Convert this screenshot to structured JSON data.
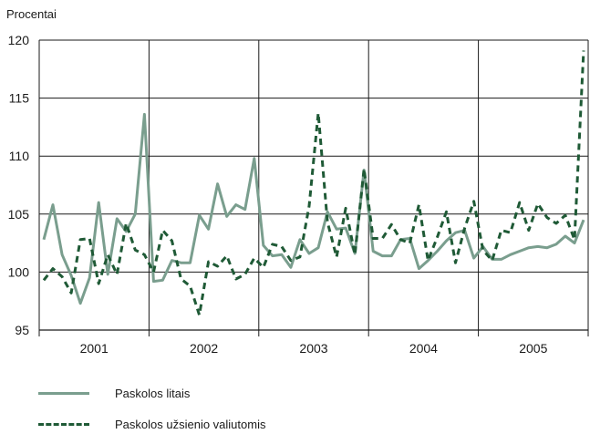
{
  "chart_data": {
    "type": "line",
    "ylabel": "Procentai",
    "ylim": [
      95,
      120
    ],
    "yticks": [
      95,
      100,
      105,
      110,
      115,
      120
    ],
    "grid": true,
    "x_year_labels": [
      "2001",
      "2002",
      "2003",
      "2004",
      "2005"
    ],
    "series": [
      {
        "name": "Paskolos litais",
        "color": "#7a9e8e",
        "style": "solid",
        "values": [
          102.8,
          105.8,
          101.5,
          99.7,
          97.3,
          99.5,
          106.0,
          99.8,
          104.6,
          103.5,
          105.0,
          113.6,
          99.2,
          99.3,
          101.0,
          100.8,
          100.8,
          104.9,
          103.7,
          107.6,
          104.8,
          105.8,
          105.4,
          109.8,
          102.3,
          101.4,
          101.5,
          100.4,
          102.8,
          101.6,
          102.1,
          105.2,
          103.7,
          103.8,
          101.6,
          108.8,
          101.8,
          101.4,
          101.4,
          102.8,
          102.9,
          100.3,
          101.0,
          101.8,
          102.7,
          103.4,
          103.6,
          101.2,
          102.2,
          101.1,
          101.1,
          101.5,
          101.8,
          102.1,
          102.2,
          102.1,
          102.4,
          103.1,
          102.5,
          104.5
        ]
      },
      {
        "name": "Paskolos užsienio valiutomis",
        "color": "#1f5a36",
        "style": "dashed",
        "values": [
          99.3,
          100.3,
          99.6,
          98.2,
          102.8,
          102.9,
          99.0,
          101.5,
          99.8,
          104.2,
          101.9,
          101.5,
          100.0,
          103.6,
          102.7,
          99.4,
          98.8,
          96.3,
          100.9,
          100.5,
          101.4,
          99.4,
          99.8,
          101.2,
          100.4,
          102.4,
          102.2,
          101.0,
          101.3,
          105.7,
          113.7,
          104.3,
          101.3,
          105.5,
          101.5,
          108.9,
          102.9,
          102.9,
          104.1,
          102.8,
          102.5,
          105.8,
          101.0,
          103.0,
          105.2,
          100.8,
          103.8,
          106.1,
          101.9,
          101.0,
          103.6,
          103.4,
          106.0,
          103.6,
          105.9,
          104.7,
          104.2,
          104.9,
          102.8,
          119.1
        ]
      }
    ]
  },
  "legend": {
    "items": [
      {
        "label": "Paskolos litais"
      },
      {
        "label": "Paskolos užsienio valiutomis"
      }
    ]
  }
}
